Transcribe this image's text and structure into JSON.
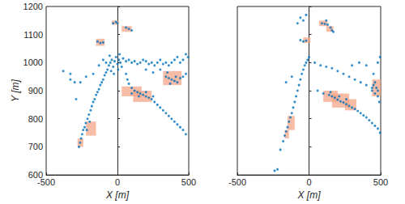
{
  "chart_data": [
    {
      "type": "scatter",
      "xlabel": "X [m]",
      "ylabel": "Y [m]",
      "xlim": [
        -500,
        500
      ],
      "ylim": [
        600,
        1200
      ],
      "xticks": [
        -500,
        0,
        500
      ],
      "yticks": [
        600,
        700,
        800,
        900,
        1000,
        1100,
        1200
      ],
      "tick_labels": true,
      "series": [
        {
          "type": "scatter",
          "color": "#0072bd",
          "points": [
            [
              -270,
              700
            ],
            [
              -262,
              715
            ],
            [
              -255,
              730
            ],
            [
              -248,
              745
            ],
            [
              -240,
              760
            ],
            [
              -230,
              770
            ],
            [
              -222,
              785
            ],
            [
              -215,
              760
            ],
            [
              -210,
              800
            ],
            [
              -200,
              815
            ],
            [
              -195,
              790
            ],
            [
              -188,
              830
            ],
            [
              -180,
              845
            ],
            [
              -170,
              860
            ],
            [
              -160,
              870
            ],
            [
              -150,
              885
            ],
            [
              -140,
              895
            ],
            [
              -130,
              905
            ],
            [
              -120,
              920
            ],
            [
              -110,
              930
            ],
            [
              -100,
              940
            ],
            [
              -90,
              955
            ],
            [
              -80,
              965
            ],
            [
              -70,
              975
            ],
            [
              -290,
              870
            ],
            [
              -380,
              970
            ],
            [
              -330,
              960
            ],
            [
              -260,
              930
            ],
            [
              -220,
              950
            ],
            [
              -170,
              960
            ],
            [
              -130,
              990
            ],
            [
              -60,
              990
            ],
            [
              -50,
              1000
            ],
            [
              -40,
              1010
            ],
            [
              -30,
              985
            ],
            [
              -20,
              1005
            ],
            [
              -10,
              1020
            ],
            [
              0,
              995
            ],
            [
              10,
              1010
            ],
            [
              20,
              1000
            ],
            [
              30,
              985
            ],
            [
              -45,
              970
            ],
            [
              -25,
              960
            ],
            [
              5,
              975
            ],
            [
              -55,
              1025
            ],
            [
              15,
              1030
            ],
            [
              40,
              1015
            ],
            [
              -80,
              1000
            ],
            [
              -100,
              1010
            ],
            [
              60,
              1005
            ],
            [
              80,
              1010
            ],
            [
              100,
              1000
            ],
            [
              120,
              1005
            ],
            [
              140,
              995
            ],
            [
              160,
              1000
            ],
            [
              180,
              1010
            ],
            [
              200,
              1005
            ],
            [
              220,
              995
            ],
            [
              240,
              1000
            ],
            [
              260,
              990
            ],
            [
              280,
              1000
            ],
            [
              300,
              1010
            ],
            [
              320,
              995
            ],
            [
              340,
              1000
            ],
            [
              360,
              990
            ],
            [
              380,
              1000
            ],
            [
              400,
              1010
            ],
            [
              420,
              1020
            ],
            [
              440,
              1000
            ],
            [
              460,
              1010
            ],
            [
              480,
              1030
            ],
            [
              495,
              1020
            ],
            [
              300,
              975
            ],
            [
              250,
              965
            ],
            [
              350,
              965
            ],
            [
              200,
              975
            ],
            [
              60,
              960
            ],
            [
              70,
              940
            ],
            [
              80,
              925
            ],
            [
              100,
              910
            ],
            [
              120,
              900
            ],
            [
              140,
              895
            ],
            [
              160,
              890
            ],
            [
              180,
              885
            ],
            [
              200,
              880
            ],
            [
              220,
              875
            ],
            [
              240,
              870
            ],
            [
              260,
              860
            ],
            [
              280,
              850
            ],
            [
              300,
              840
            ],
            [
              320,
              830
            ],
            [
              340,
              820
            ],
            [
              360,
              810
            ],
            [
              380,
              800
            ],
            [
              400,
              790
            ],
            [
              420,
              780
            ],
            [
              440,
              770
            ],
            [
              460,
              760
            ],
            [
              480,
              745
            ],
            [
              100,
              890
            ],
            [
              150,
              880
            ],
            [
              200,
              895
            ],
            [
              250,
              880
            ],
            [
              340,
              950
            ],
            [
              360,
              945
            ],
            [
              380,
              940
            ],
            [
              400,
              935
            ],
            [
              420,
              930
            ],
            [
              440,
              945
            ],
            [
              460,
              950
            ],
            [
              480,
              960
            ],
            [
              370,
              925
            ],
            [
              410,
              950
            ],
            [
              -30,
              1140
            ],
            [
              -10,
              1145
            ],
            [
              0,
              1140
            ],
            [
              60,
              1125
            ],
            [
              80,
              1120
            ],
            [
              100,
              1115
            ],
            [
              -140,
              1075
            ],
            [
              -120,
              1070
            ],
            [
              -100,
              1072
            ],
            [
              -330,
              940
            ],
            [
              -300,
              930
            ]
          ]
        },
        {
          "type": "rect",
          "color": "#f4a688",
          "boxes": [
            [
              -40,
              1135,
              10,
              1150
            ],
            [
              30,
              1110,
              100,
              1130
            ],
            [
              -150,
              1060,
              -90,
              1085
            ],
            [
              30,
              880,
              170,
              915
            ],
            [
              110,
              860,
              240,
              900
            ],
            [
              320,
              920,
              450,
              970
            ],
            [
              -220,
              740,
              -150,
              790
            ],
            [
              -280,
              700,
              -240,
              730
            ]
          ]
        }
      ]
    },
    {
      "type": "scatter",
      "xlabel": "X [m]",
      "xlim": [
        -500,
        500
      ],
      "ylim": [
        600,
        1200
      ],
      "xticks": [
        -500,
        0,
        500
      ],
      "yticks": [
        600,
        700,
        800,
        900,
        1000,
        1100,
        1200
      ],
      "tick_labels": "x",
      "series": [
        {
          "type": "scatter",
          "color": "#0072bd",
          "points": [
            [
              -240,
              615
            ],
            [
              -220,
              620
            ],
            [
              -200,
              690
            ],
            [
              -180,
              720
            ],
            [
              -170,
              740
            ],
            [
              -160,
              755
            ],
            [
              -150,
              770
            ],
            [
              -140,
              790
            ],
            [
              -130,
              805
            ],
            [
              -120,
              820
            ],
            [
              -110,
              840
            ],
            [
              -100,
              860
            ],
            [
              -90,
              880
            ],
            [
              -80,
              900
            ],
            [
              -70,
              920
            ],
            [
              -60,
              940
            ],
            [
              -50,
              960
            ],
            [
              -40,
              975
            ],
            [
              -30,
              990
            ],
            [
              -20,
              1000
            ],
            [
              -10,
              1010
            ],
            [
              0,
              1020
            ],
            [
              -60,
              1080
            ],
            [
              -40,
              1075
            ],
            [
              -20,
              1078
            ],
            [
              -80,
              1140
            ],
            [
              -60,
              1160
            ],
            [
              -40,
              1150
            ],
            [
              -20,
              1170
            ],
            [
              -160,
              930
            ],
            [
              -120,
              950
            ],
            [
              90,
              1140
            ],
            [
              110,
              1138
            ],
            [
              130,
              1135
            ],
            [
              150,
              1125
            ],
            [
              160,
              1115
            ],
            [
              170,
              1110
            ],
            [
              120,
              1150
            ],
            [
              40,
              1000
            ],
            [
              80,
              990
            ],
            [
              120,
              985
            ],
            [
              160,
              980
            ],
            [
              200,
              970
            ],
            [
              240,
              960
            ],
            [
              280,
              950
            ],
            [
              320,
              940
            ],
            [
              360,
              930
            ],
            [
              400,
              920
            ],
            [
              440,
              910
            ],
            [
              480,
              900
            ],
            [
              300,
              990
            ],
            [
              350,
              1000
            ],
            [
              400,
              990
            ],
            [
              450,
              960
            ],
            [
              480,
              1000
            ],
            [
              495,
              1020
            ],
            [
              60,
              900
            ],
            [
              100,
              890
            ],
            [
              140,
              885
            ],
            [
              160,
              880
            ],
            [
              180,
              875
            ],
            [
              200,
              868
            ],
            [
              220,
              862
            ],
            [
              240,
              858
            ],
            [
              260,
              852
            ],
            [
              280,
              846
            ],
            [
              300,
              840
            ],
            [
              320,
              835
            ],
            [
              340,
              828
            ],
            [
              360,
              820
            ],
            [
              380,
              812
            ],
            [
              400,
              805
            ],
            [
              420,
              795
            ],
            [
              440,
              785
            ],
            [
              460,
              775
            ],
            [
              480,
              765
            ],
            [
              495,
              750
            ],
            [
              150,
              895
            ],
            [
              210,
              880
            ],
            [
              260,
              870
            ],
            [
              440,
              900
            ],
            [
              450,
              920
            ],
            [
              460,
              890
            ],
            [
              470,
              910
            ],
            [
              480,
              880
            ],
            [
              460,
              930
            ],
            [
              490,
              860
            ]
          ]
        },
        {
          "type": "rect",
          "color": "#f4a688",
          "boxes": [
            [
              -40,
              1070,
              10,
              1090
            ],
            [
              70,
              1130,
              130,
              1150
            ],
            [
              120,
              1110,
              170,
              1130
            ],
            [
              100,
              860,
              200,
              900
            ],
            [
              160,
              840,
              280,
              890
            ],
            [
              250,
              830,
              330,
              870
            ],
            [
              440,
              880,
              500,
              940
            ],
            [
              -170,
              730,
              -140,
              760
            ],
            [
              -150,
              760,
              -100,
              810
            ]
          ]
        }
      ]
    }
  ]
}
